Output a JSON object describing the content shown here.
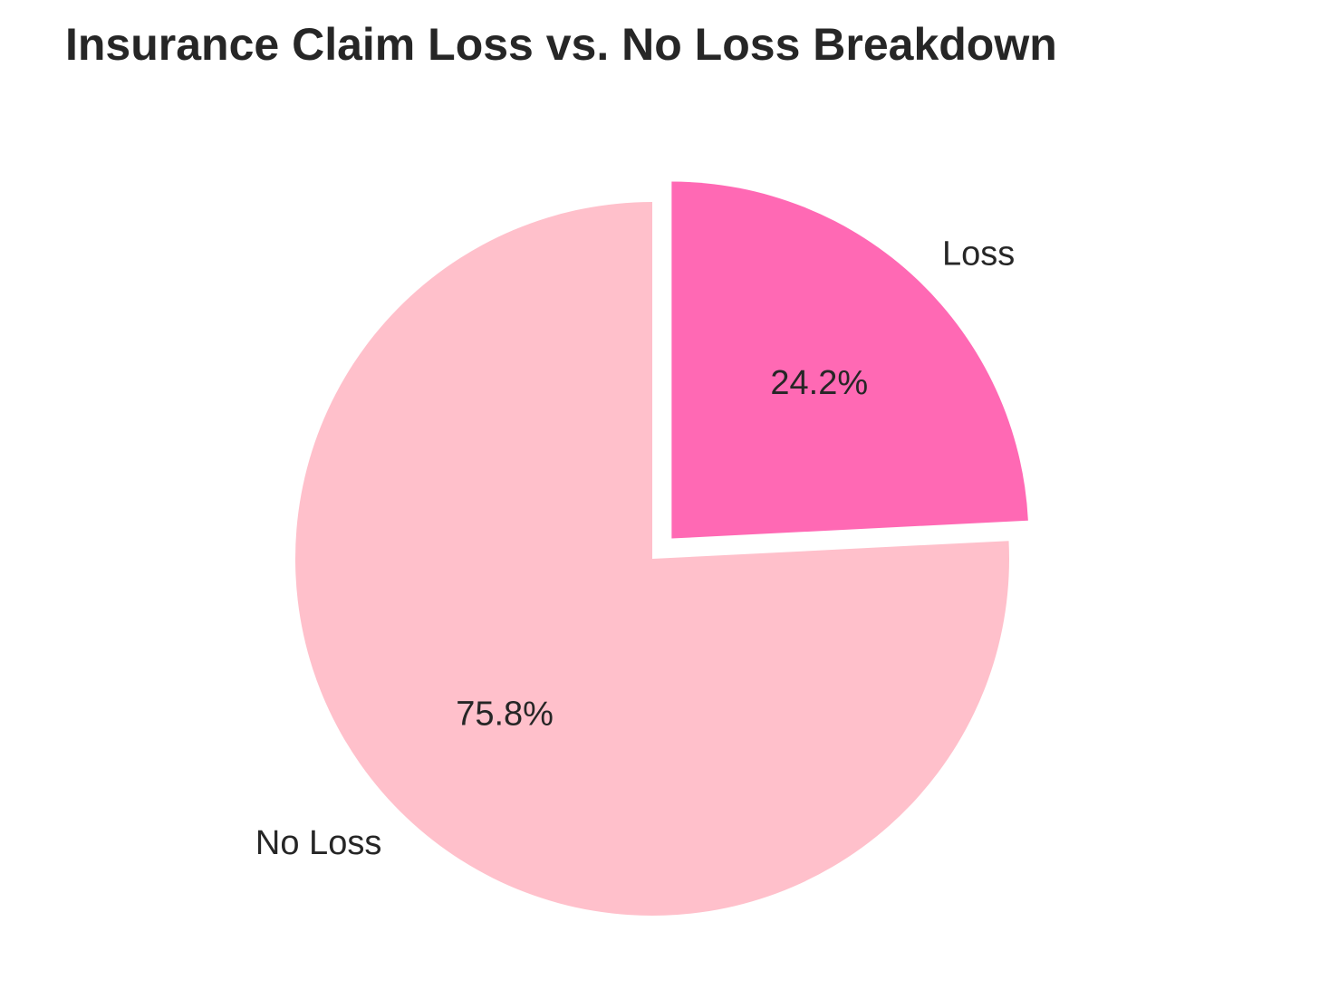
{
  "chart_data": {
    "type": "pie",
    "title": "Insurance Claim Loss vs. No Loss Breakdown",
    "slices": [
      {
        "label": "Loss",
        "value": 24.2,
        "pct_label": "24.2%",
        "color": "#ff69b4",
        "exploded": true
      },
      {
        "label": "No Loss",
        "value": 75.8,
        "pct_label": "75.8%",
        "color": "#ffc0cb",
        "exploded": false
      }
    ],
    "start": "top",
    "direction": "clockwise"
  }
}
